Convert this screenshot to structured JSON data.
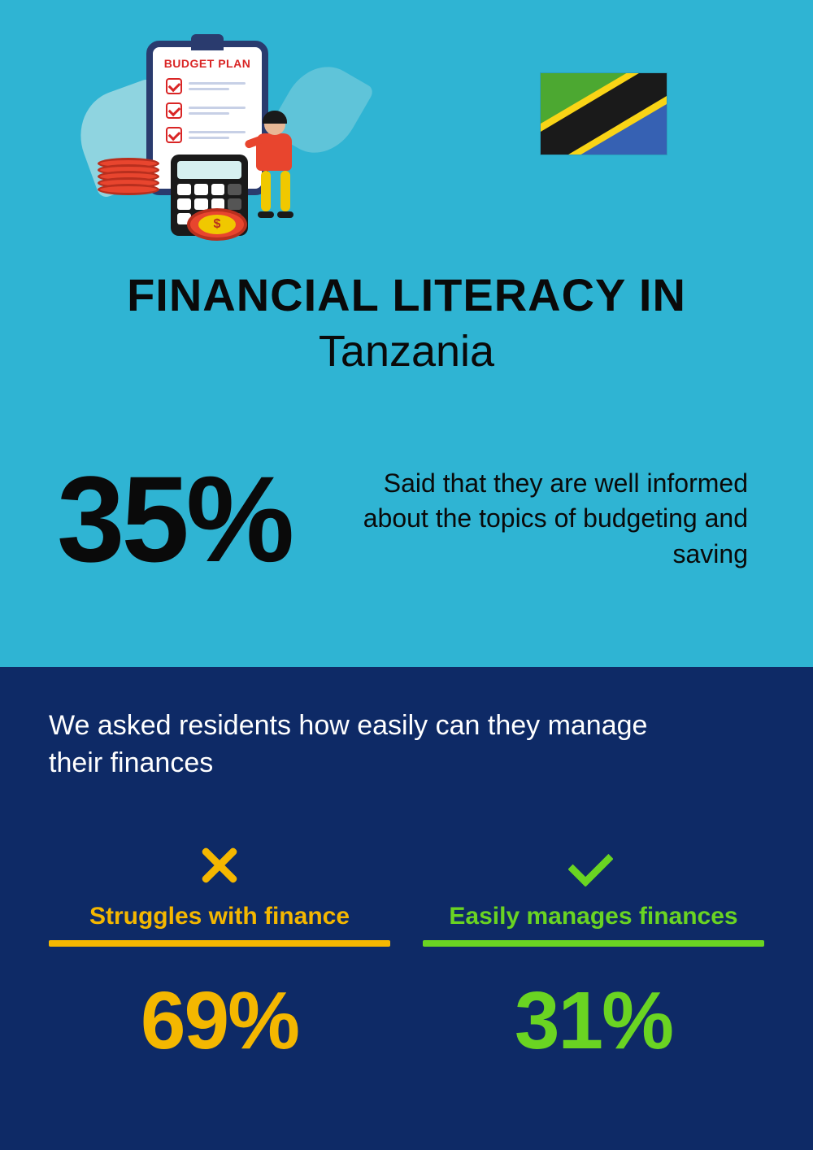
{
  "header": {
    "clipboard_title": "BUDGET PLAN"
  },
  "title": {
    "line1": "FINANCIAL LITERACY IN",
    "line2": "Tanzania"
  },
  "main_stat": {
    "percent": "35%",
    "description": "Said that they are well informed about the topics of budgeting and saving"
  },
  "survey": {
    "question": "We asked residents how easily can they manage their finances",
    "left": {
      "label": "Struggles with finance",
      "percent": "69%",
      "color": "#f4b700"
    },
    "right": {
      "label": "Easily manages finances",
      "percent": "31%",
      "color": "#6ad422"
    }
  },
  "colors": {
    "top_bg": "#2fb4d3",
    "bottom_bg": "#0e2a66",
    "text_dark": "#0a0a0a",
    "text_light": "#ffffff"
  }
}
